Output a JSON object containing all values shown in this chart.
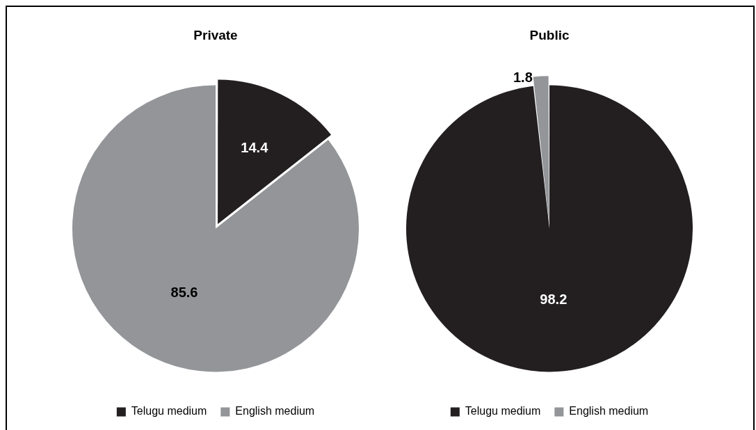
{
  "chart_data": [
    {
      "type": "pie",
      "title": "Private",
      "categories": [
        "Telugu medium",
        "English medium"
      ],
      "values": [
        14.4,
        85.6
      ],
      "colors": [
        "#231f20",
        "#939598"
      ],
      "data_labels": true,
      "legend": "bottom"
    },
    {
      "type": "pie",
      "title": "Public",
      "categories": [
        "Telugu medium",
        "English medium"
      ],
      "values": [
        98.2,
        1.8
      ],
      "colors": [
        "#231f20",
        "#939598"
      ],
      "data_labels": true,
      "legend": "bottom"
    }
  ]
}
